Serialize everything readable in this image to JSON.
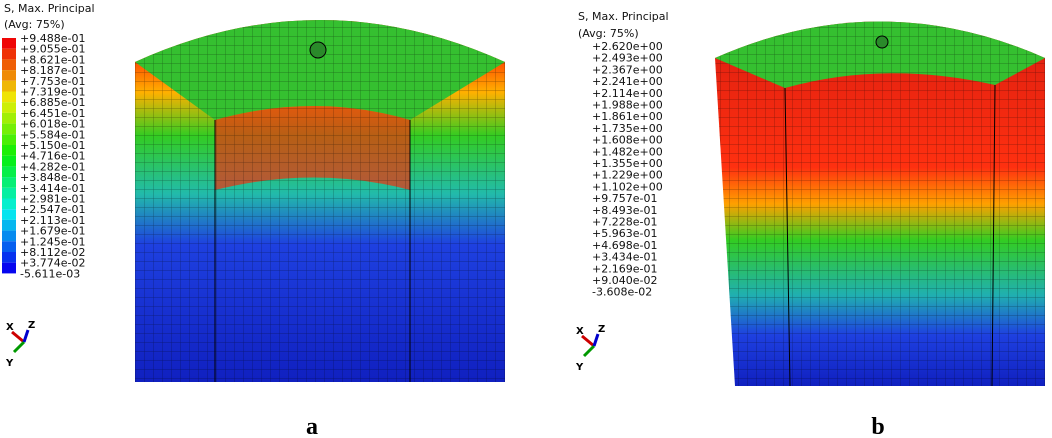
{
  "panels": [
    {
      "legend": {
        "title": "S, Max. Principal",
        "avg": "(Avg: 75%)",
        "labels": [
          "+9.488e-01",
          "+9.055e-01",
          "+8.621e-01",
          "+8.187e-01",
          "+7.753e-01",
          "+7.319e-01",
          "+6.885e-01",
          "+6.451e-01",
          "+6.018e-01",
          "+5.584e-01",
          "+5.150e-01",
          "+4.716e-01",
          "+4.282e-01",
          "+3.848e-01",
          "+3.414e-01",
          "+2.981e-01",
          "+2.547e-01",
          "+2.113e-01",
          "+1.679e-01",
          "+1.245e-01",
          "+8.112e-02",
          "+3.774e-02",
          "-5.611e-03"
        ]
      },
      "triad": {
        "x": "X",
        "y": "Y",
        "z": "Z"
      },
      "caption": "a"
    },
    {
      "legend": {
        "title": "S, Max. Principal",
        "avg": "(Avg: 75%)",
        "labels": [
          "+2.620e+00",
          "+2.493e+00",
          "+2.367e+00",
          "+2.241e+00",
          "+2.114e+00",
          "+1.988e+00",
          "+1.861e+00",
          "+1.735e+00",
          "+1.608e+00",
          "+1.482e+00",
          "+1.355e+00",
          "+1.229e+00",
          "+1.102e+00",
          "+9.757e-01",
          "+8.493e-01",
          "+7.228e-01",
          "+5.963e-01",
          "+4.698e-01",
          "+3.434e-01",
          "+2.169e-01",
          "+9.040e-02",
          "-3.608e-02"
        ]
      },
      "triad": {
        "x": "X",
        "y": "Y",
        "z": "Z"
      },
      "caption": "b"
    }
  ]
}
